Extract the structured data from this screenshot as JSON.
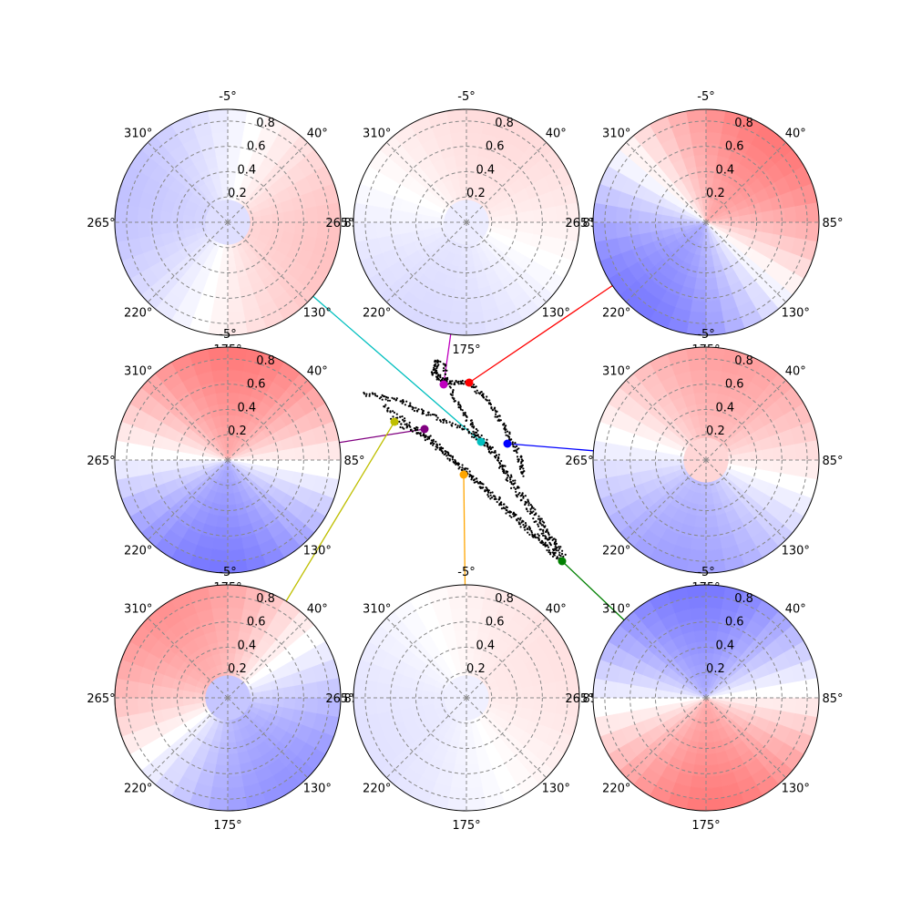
{
  "chart_data": {
    "type": "polar-heatmap-grid",
    "description_free": true,
    "angle_ticks": [
      "-5°",
      "40°",
      "85°",
      "130°",
      "175°",
      "220°",
      "265°",
      "310°"
    ],
    "radial_ticks": [
      "0.2",
      "0.4",
      "0.6",
      "0.8"
    ],
    "rlim": [
      0,
      1
    ],
    "grid": true,
    "colormap": "bwr",
    "panels": [
      {
        "id": "top-left",
        "connector_color": "#00bfbf",
        "marker_color": "#00bfbf",
        "point": [
          0.36,
          0.42
        ],
        "red_dir": 100,
        "blue_dir": 280,
        "strength": 0.25,
        "center_blob": "blue"
      },
      {
        "id": "top-center",
        "connector_color": "#bf00bf",
        "marker_color": "#bf00bf",
        "point": [
          0.1,
          0.92
        ],
        "red_dir": 20,
        "blue_dir": 200,
        "strength": 0.15,
        "center_blob": "blue"
      },
      {
        "id": "top-right",
        "connector_color": "#ff0000",
        "marker_color": "#ff0000",
        "point": [
          0.22,
          0.8
        ],
        "red_dir": 35,
        "blue_dir": 215,
        "strength": 0.55,
        "center_blob": "none"
      },
      {
        "id": "middle-left",
        "connector_color": "#800080",
        "marker_color": "#800080",
        "point": [
          -0.36,
          0.52
        ],
        "red_dir": 0,
        "blue_dir": 180,
        "strength": 0.55,
        "center_blob": "none"
      },
      {
        "id": "middle-right",
        "connector_color": "#0000ff",
        "marker_color": "#0000ff",
        "point": [
          0.42,
          0.42
        ],
        "red_dir": 10,
        "blue_dir": 190,
        "strength": 0.4,
        "center_blob": "red"
      },
      {
        "id": "bottom-left",
        "connector_color": "#bfbf00",
        "marker_color": "#bfbf00",
        "point": [
          -0.62,
          0.55
        ],
        "red_dir": 320,
        "blue_dir": 170,
        "strength": 0.45,
        "center_blob": "blue"
      },
      {
        "id": "bottom-center",
        "connector_color": "#ffa500",
        "marker_color": "#ffa500",
        "point": [
          0.15,
          0.25
        ],
        "red_dir": 60,
        "blue_dir": 240,
        "strength": 0.12,
        "center_blob": "blue"
      },
      {
        "id": "bottom-right",
        "connector_color": "#008000",
        "marker_color": "#008000",
        "point": [
          0.95,
          -0.6
        ],
        "red_dir": 170,
        "blue_dir": 350,
        "strength": 0.55,
        "center_blob": "none"
      }
    ]
  }
}
